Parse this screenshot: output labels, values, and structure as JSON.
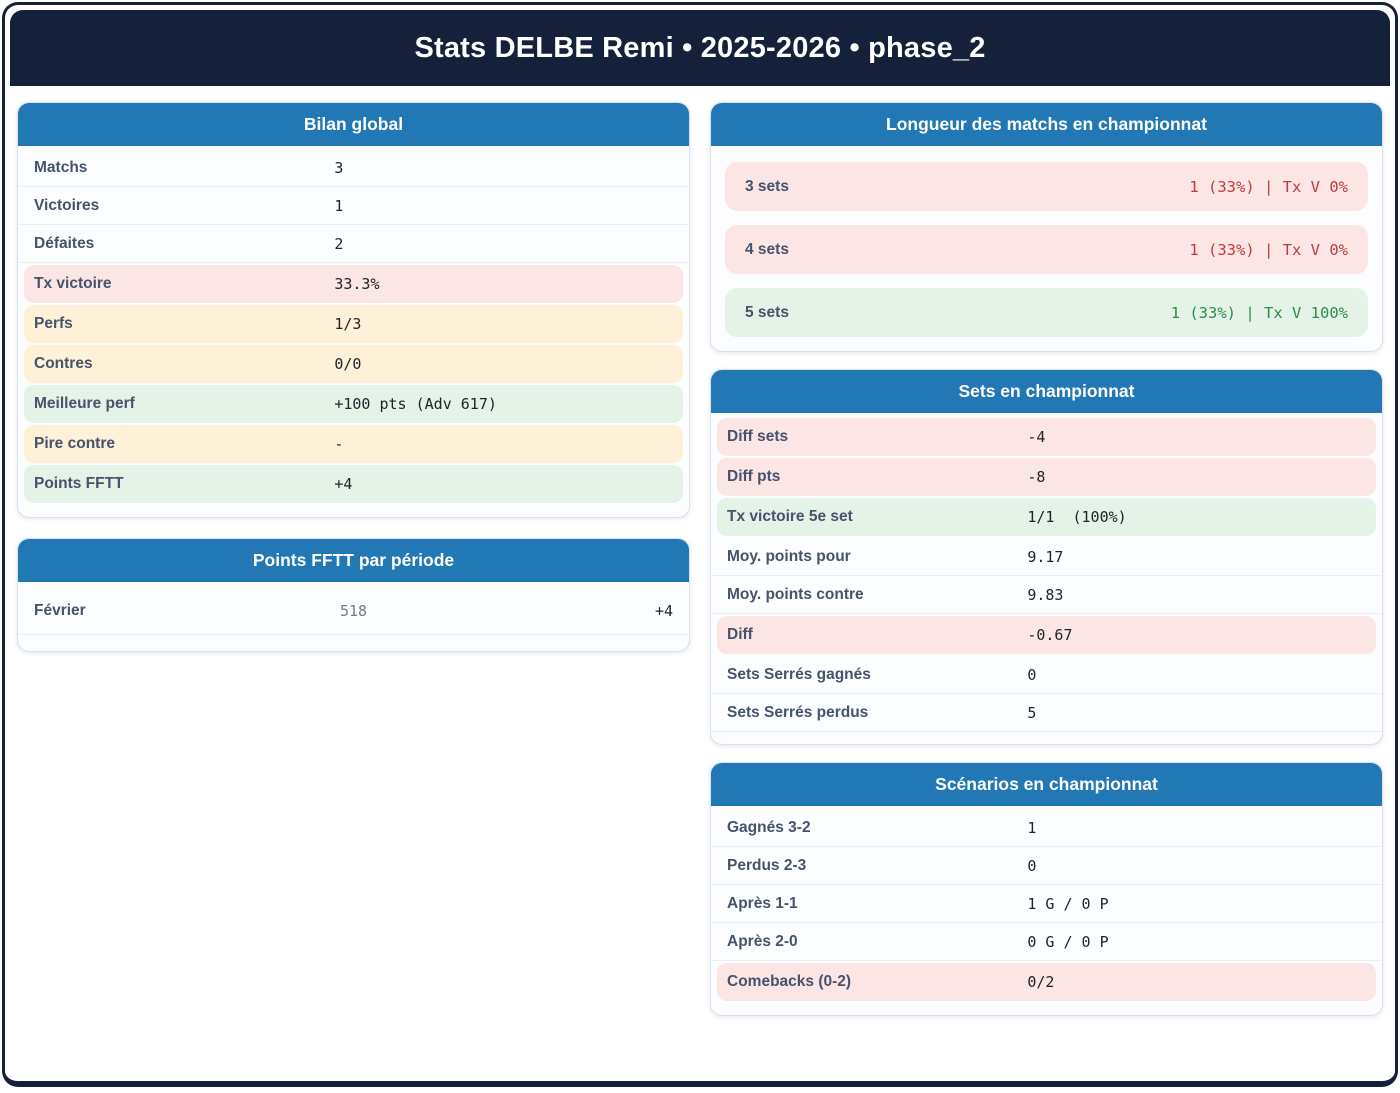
{
  "app": {
    "title": "Stats DELBE Remi • 2025-2026 • phase_2"
  },
  "colors": {
    "navy": "#15213a",
    "card_header_blue": "#2278b5",
    "pink_bg": "#fbe5e5",
    "yellow_bg": "#fdf1d7",
    "green_bg": "#e4f2e7",
    "red_text": "#bb3e3e",
    "green_text": "#2f8e44"
  },
  "cards": {
    "bilan_global": {
      "title": "Bilan global",
      "rows": [
        {
          "label": "Matchs",
          "value": "3",
          "tone": "none"
        },
        {
          "label": "Victoires",
          "value": "1",
          "tone": "none"
        },
        {
          "label": "Défaites",
          "value": "2",
          "tone": "none"
        },
        {
          "label": "Tx victoire",
          "value": "33.3%",
          "tone": "pink"
        },
        {
          "label": "Perfs",
          "value": "1/3",
          "tone": "yellow"
        },
        {
          "label": "Contres",
          "value": "0/0",
          "tone": "yellow"
        },
        {
          "label": "Meilleure perf",
          "value": "+100 pts (Adv 617)",
          "tone": "green"
        },
        {
          "label": "Pire contre",
          "value": "-",
          "tone": "yellow"
        },
        {
          "label": "Points FFTT",
          "value": "+4",
          "tone": "green"
        }
      ]
    },
    "points_fftt_periode": {
      "title": "Points FFTT par période",
      "rows": [
        {
          "label": "Février",
          "mid_value": "518",
          "right_value": "+4"
        }
      ]
    },
    "longueur_matchs": {
      "title": "Longueur des matchs en championnat",
      "rows": [
        {
          "label": "3 sets",
          "value": "1 (33%) | Tx V 0%",
          "tone": "bad"
        },
        {
          "label": "4 sets",
          "value": "1 (33%) | Tx V 0%",
          "tone": "bad"
        },
        {
          "label": "5 sets",
          "value": "1 (33%) | Tx V 100%",
          "tone": "good"
        }
      ]
    },
    "sets_championnat": {
      "title": "Sets en championnat",
      "rows": [
        {
          "label": "Diff sets",
          "value": "-4",
          "tone": "pink"
        },
        {
          "label": "Diff pts",
          "value": "-8",
          "tone": "pink"
        },
        {
          "label": "Tx victoire 5e set",
          "value": "1/1  (100%)",
          "tone": "green"
        },
        {
          "label": "Moy. points pour",
          "value": "9.17",
          "tone": "none"
        },
        {
          "label": "Moy. points contre",
          "value": "9.83",
          "tone": "none"
        },
        {
          "label": "Diff",
          "value": "-0.67",
          "tone": "pink"
        },
        {
          "label": "Sets Serrés gagnés",
          "value": "0",
          "tone": "none"
        },
        {
          "label": "Sets Serrés perdus",
          "value": "5",
          "tone": "none"
        }
      ]
    },
    "scenarios": {
      "title": "Scénarios en championnat",
      "rows": [
        {
          "label": "Gagnés 3-2",
          "value": "1",
          "tone": "none"
        },
        {
          "label": "Perdus 2-3",
          "value": "0",
          "tone": "none"
        },
        {
          "label": "Après 1-1",
          "value": "1 G / 0 P",
          "tone": "none"
        },
        {
          "label": "Après 2-0",
          "value": "0 G / 0 P",
          "tone": "none"
        },
        {
          "label": "Comebacks (0-2)",
          "value": "0/2",
          "tone": "pink"
        }
      ]
    }
  }
}
